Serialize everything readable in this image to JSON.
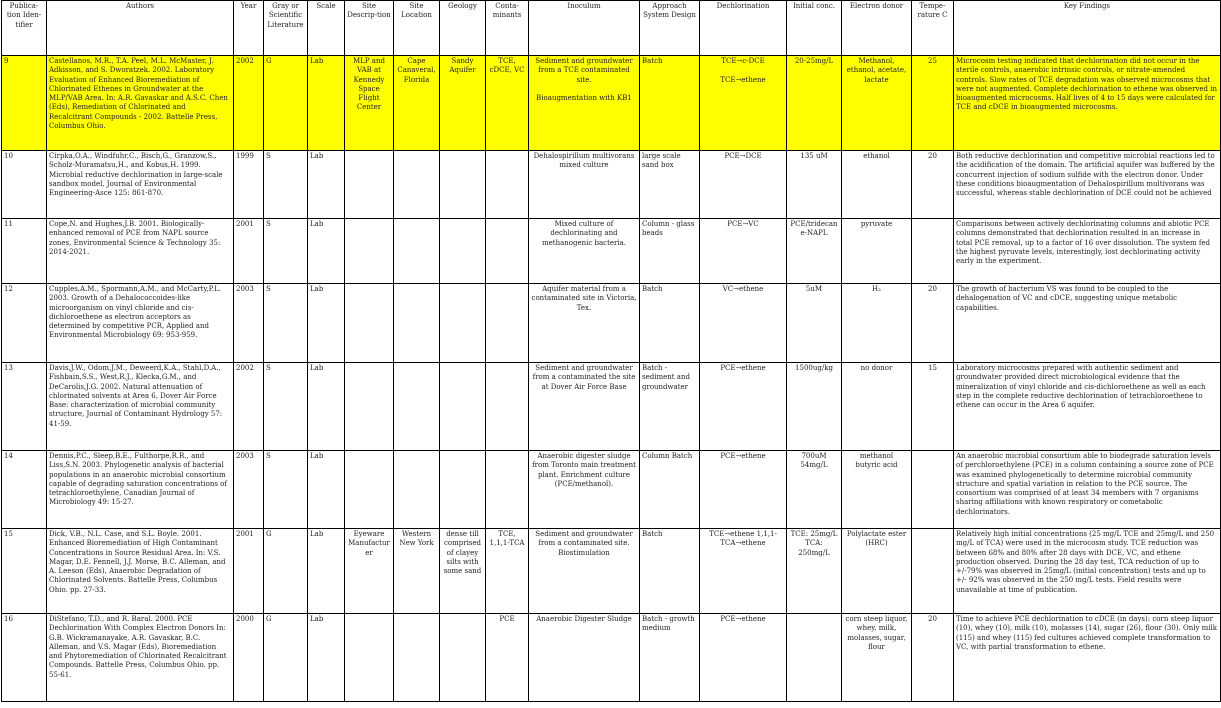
{
  "table": {
    "header": [
      "Publica-tion Iden-tifier",
      "Authors",
      "Year",
      "Gray or Scientific Literature",
      "Scale",
      "Site Descrip-tion",
      "Site Location",
      "Geology",
      "Conta-minants",
      "Inoculum",
      "Approach System Design",
      "Dechlorination",
      "Initial conc.",
      "Electron donor",
      "Tempe-rature C",
      "Key Findings"
    ],
    "rows": [
      [
        "9",
        "Castellanos, M.R., T.A. Peel, M.L. McMaster, J. Adkisson, and S. Dworatzek. 2002. Laboratory Evaluation of Enhanced Bioremediation of Chlorinated Ethenes in Groundwater at the MLP/VAB Area. In: A.R. Gavaskar and A.S.C. Chen (Eds), Remediation of Chlorinated and Recalcitrant Compounds - 2002. Battelle Press, Columbus Ohio.",
        "2002",
        "G",
        "Lab",
        "MLP and VAB at Kennedy Space Flight Center",
        "Cape Canaveral, Florida",
        "Sandy Aquifer",
        "TCE, cDCE, VC",
        "Sediment and groundwater from a TCE contaminated site.\n\nBioaugmentation with KB1",
        "Batch",
        "TCE→c-DCE\n\nTCE→ethene",
        "20-25mg/L",
        "Methanol, ethanol, acetate, lactate",
        "25",
        "Microcosm testing indicated that dechlorination did not occur in the sterile controls, anaerobic intrinsic controls, or nitrate-amended controls. Slow rates of TCE degradation was observed microcosms that were not augmented. Complete dechlorination to ethene was observed in bioaugmented microcosms. Half lives of 4 to 15 days were calculated for TCE and cDCE in bioaugmented microcosms."
      ],
      [
        "10",
        "Cirpka,O.A., Windfuhr,C., Bisch,G., Granzow,S., Scholz-Muramatsu,H., and Kobus,H. 1999. Microbial reductive dechlorination in large-scale sandbox model, Journal of Environmental Engineering-Asce 125: 861-870.",
        "1999",
        "S",
        "Lab",
        null,
        null,
        null,
        null,
        "Dehalospirillum multivorans mixed culture",
        "large scale sand box",
        "PCE→DCE",
        "135 uM",
        "ethanol",
        "20",
        "Both reductive dechlorination and competitive microbial reactions led to the acidification of the domain. The artificial aquifer was buffered by the concurrent injection of sodium sulfide with the electron donor. Under these conditions bioaugmentation of Dehalospirillum multivorans was successful, whereas stable dechlorination of DCE could not be achieved"
      ],
      [
        "11",
        "Cope,N. and Hughes,J.B. 2001. Biologically-enhanced removal of PCE from NAPL source zones, Environmental Science & Technology 35: 2014-2021.",
        "2001",
        "S",
        "Lab",
        null,
        null,
        null,
        null,
        "Mixed culture of dechlorinating and methanogenic bacteria.",
        "Column - glass beads",
        "PCE→VC",
        "PCE/tridecane-NAPL",
        "pyruvate",
        null,
        "Comparisons between actively dechlorinating columns and abiotic PCE columns demonstrated that dechlorination resulted in an increase in total PCE removal, up to a factor of 16 over dissolution. The system fed the highest pyruvate levels, interestingly, lost dechlorinating activity early in the experiment."
      ],
      [
        "12",
        "Cupples,A.M., Spormann,A.M., and McCarty,P.L. 2003. Growth of a Dehalococcoides-like microorganism on vinyl chloride and cis-dichloroethene as electron acceptors as determined by competitive PCR, Applied and Environmental Microbiology 69: 953-959.",
        "2003",
        "S",
        "Lab",
        null,
        null,
        null,
        null,
        "Aquifer material from a contaminated site in Victoria, Tex.",
        "Batch",
        "VC→ethene",
        "5uM",
        "H₂",
        "20",
        "The growth of bacterium VS was found to be coupled to the dehalogenation of VC and cDCE, suggesting unique metabolic capabilities."
      ],
      [
        "13",
        "Davis,J.W., Odom,J.M., Deweerd,K.A., Stahl,D.A., Fishbain,S.S., West,R.J., Klecka,G.M., and DeCarolis,J.G. 2002. Natural attenuation of chlorinated solvents at Area 6, Dover Air Force Base: characterization of microbial community structure, Journal of Contaminant Hydrology 57: 41-59.",
        "2002",
        "S",
        "Lab",
        null,
        null,
        null,
        null,
        "Sediment and groundwater from a contaminated the site at Dover Air Force Base",
        "Batch - sediment and groundwater",
        "PCE→ethene",
        "1500ug/kg",
        "no donor",
        "15",
        "Laboratory microcosms prepared with authentic sediment and groundwater provided direct microbiological evidence that the mineralization of vinyl chloride and cis-dichloroethene as well as each step in the complete reductive dechlorination of tetrachloroethene to ethene can occur in the Area 6 aquifer."
      ],
      [
        "14",
        "Dennis,P.C., Sleep,B.E., Fulthorpe,R.R., and Liss,S.N. 2003. Phylogenetic analysis of bacterial populations in an anaerobic microbial consortium capable of degrading saturation concentrations of tetrachloroethylene, Canadian Journal of Microbiology 49: 15-27.",
        "2003",
        "S",
        "Lab",
        null,
        null,
        null,
        null,
        "Anaerobic digester sludge from Toronto main treatment plant. Enrichment culture (PCE/methanol).",
        "Column Batch",
        "PCE→ethene",
        "700uM\n54mg/L",
        "methanol\nbutyric acid",
        null,
        "An anaerobic microbial consortium able to biodegrade saturation levels of perchloroethylene (PCE) in a column containing a source zone of PCE was examined phylogenetically to determine microbial community structure and spatial variation in relation to the PCE source. The consortium was comprised of at least 34 members with 7 organisms sharing affiliations with known respiratory or cometabolic dechlorinators."
      ],
      [
        "15",
        "Dick, V.B., N.L. Case, and S.L. Boyle. 2001. Enhanced Bioremediation of High Contaminant Concentrations in Source Residual Area. In: V.S. Magar, D.E. Fennell, J.J. Morse, B.C. Alleman, and A. Leeson (Eds), Anaerobic Degradation of Chlorinated Solvents. Battelle Press, Columbus Ohio. pp. 27-33.",
        "2001",
        "G",
        "Lab",
        "Eyeware Manufacturer",
        "Western New York",
        "dense till comprised of clayey silts with some sand",
        "TCE, 1,1,1-TCA",
        "Sediment and groundwater from a contaminated site. Biostimulation",
        "Batch",
        "TCE→ethene 1,1,1-TCA→ethene",
        "TCE: 25mg/L\nTCA: 250mg/L",
        "Polylactate ester (HRC)",
        null,
        "Relatively high initial concentrations (25 mg/L TCE and 25mg/L and 250 mg/L of TCA) were used in the microcosm study. TCE reduction was between 68% and 80% after 28 days with DCE, VC, and ethene production observed. During the 28 day test, TCA reduction of up to +/-79% was observed in 25mg/L (initial concentration) tests and up to +/- 92% was observed in the 250 mg/L tests. Field results were unavailable at time of publication."
      ],
      [
        "16",
        "DiStefano, T.D., and R. Baral. 2000. PCE Dechlorination With Complex Electron Donors In: G.B. Wickramanayake, A.R. Gavaskar, B.C. Alleman, and V.S. Magar (Eds), Bioremediation and Phytoremediation of Chlorinated Recalcitrant Compounds. Battelle Press, Columbus Ohio. pp. 55-61.",
        "2000",
        "G",
        "Lab",
        null,
        null,
        null,
        "PCE",
        "Anaerobic Digester Sludge",
        "Batch - growth medium",
        "PCE→ethene",
        null,
        "corn steep liquor, whey, milk, molasses, sugar, flour",
        "20",
        "Time to achieve PCE dechlorination to cDCE (in days): corn steep liquor (10), whey (10), milk (10), molasses (14), sugar (26), flour (30). Only milk (115) and whey (115) fed cultures achieved complete transformation to VC, with partial transformation to ethene."
      ]
    ]
  }
}
